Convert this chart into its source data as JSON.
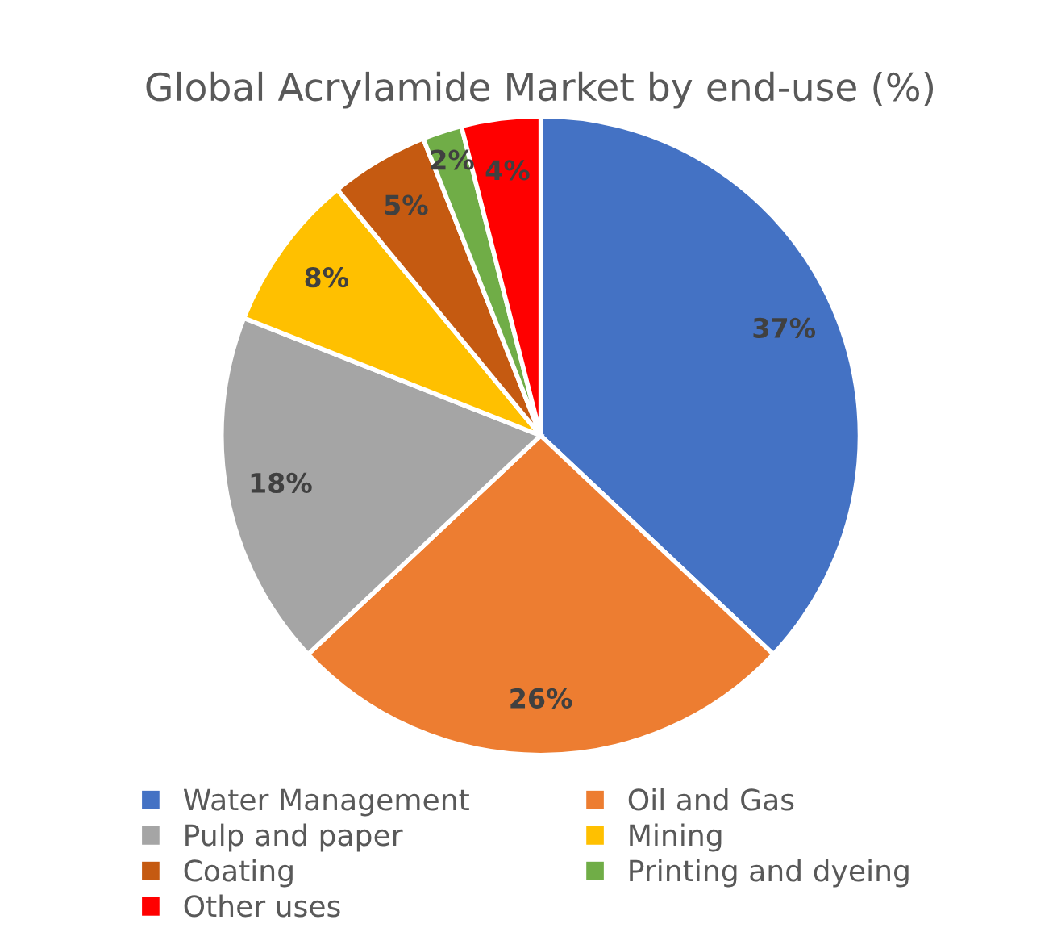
{
  "chart_data": {
    "type": "pie",
    "title": "Global Acrylamide Market by end-use (%)",
    "categories": [
      "Water Management",
      "Oil and Gas",
      "Pulp and paper",
      "Mining",
      "Coating",
      "Printing and dyeing",
      "Other uses"
    ],
    "values": [
      37,
      26,
      18,
      8,
      5,
      2,
      4
    ],
    "colors": [
      "#4472c4",
      "#ed7d31",
      "#a5a5a5",
      "#ffc000",
      "#c55a11",
      "#70ad47",
      "#ff0000"
    ],
    "value_labels": [
      "37%",
      "26%",
      "18%",
      "8%",
      "5%",
      "2%",
      "4%"
    ],
    "legend": "bottom"
  }
}
